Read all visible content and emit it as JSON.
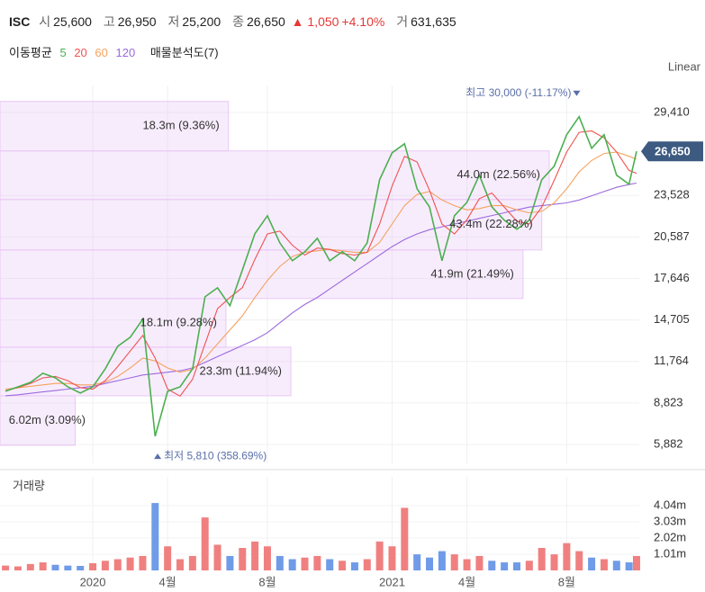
{
  "header": {
    "ticker": "ISC",
    "fields": [
      {
        "label": "시",
        "value": "25,600"
      },
      {
        "label": "고",
        "value": "26,950"
      },
      {
        "label": "저",
        "value": "25,200"
      },
      {
        "label": "종",
        "value": "26,650"
      }
    ],
    "change": "▲ 1,050",
    "change_pct": "+4.10%",
    "volume_label": "거",
    "volume_value": "631,635"
  },
  "legend_title": "이동평균",
  "chart_data": [
    {
      "type": "line",
      "scale_label": "Linear",
      "x": [
        -3.5,
        -3,
        -2.5,
        -2,
        -1.5,
        -1,
        -0.5,
        0,
        0.5,
        1,
        1.5,
        2,
        2.5,
        3,
        3.5,
        4,
        4.5,
        5,
        5.5,
        6,
        6.5,
        7,
        7.5,
        8,
        8.5,
        9,
        9.5,
        10,
        10.5,
        11,
        11.5,
        12,
        12.5,
        13,
        13.5,
        14,
        14.5,
        15,
        15.5,
        16,
        16.5,
        17,
        17.5,
        18,
        18.5,
        19,
        19.5,
        20,
        20.5,
        21,
        21.5,
        21.8
      ],
      "series": [
        {
          "name": "5",
          "color": "#4caf50",
          "values": [
            9650,
            9960,
            10280,
            10920,
            10600,
            9960,
            9520,
            9960,
            11240,
            12840,
            13470,
            14750,
            6460,
            9650,
            9960,
            11240,
            16340,
            16980,
            15710,
            18260,
            20810,
            22090,
            20170,
            18900,
            19530,
            20490,
            18900,
            19530,
            18900,
            20170,
            24640,
            26550,
            27190,
            24000,
            22720,
            18900,
            22090,
            23040,
            24960,
            22720,
            21770,
            21130,
            21770,
            24640,
            25600,
            27830,
            29110,
            26870,
            27830,
            24960,
            24320,
            26650
          ]
        },
        {
          "name": "20",
          "color": "#ef5350",
          "values": [
            9700,
            9900,
            10200,
            10600,
            10700,
            10400,
            9900,
            9800,
            10400,
            11400,
            12500,
            13600,
            12000,
            9800,
            9300,
            10500,
            13000,
            15500,
            16300,
            17000,
            19000,
            20800,
            21000,
            20000,
            19300,
            19800,
            19700,
            19400,
            19300,
            19500,
            21500,
            24200,
            26300,
            25900,
            23900,
            21500,
            20800,
            21800,
            23300,
            23700,
            22700,
            21700,
            21500,
            22700,
            24600,
            26600,
            28000,
            28100,
            27600,
            26600,
            25300,
            25100
          ]
        },
        {
          "name": "60",
          "color": "#f5a25d",
          "values": [
            9800,
            9900,
            10000,
            10100,
            10200,
            10200,
            10100,
            10100,
            10300,
            10700,
            11300,
            12000,
            11800,
            11300,
            11000,
            11200,
            12000,
            13000,
            14000,
            15000,
            16300,
            17500,
            18500,
            19200,
            19500,
            19600,
            19700,
            19600,
            19500,
            19500,
            20200,
            21500,
            22800,
            23600,
            23800,
            23200,
            22800,
            22500,
            22600,
            22800,
            22800,
            22500,
            22300,
            22400,
            23000,
            24000,
            25200,
            26000,
            26500,
            26600,
            26300,
            26100
          ]
        },
        {
          "name": "120",
          "color": "#9c6ade",
          "values": [
            9330,
            9400,
            9500,
            9600,
            9700,
            9800,
            9900,
            10000,
            10200,
            10400,
            10600,
            10800,
            10900,
            11000,
            11100,
            11300,
            11700,
            12100,
            12500,
            12900,
            13300,
            13800,
            14500,
            15200,
            15800,
            16300,
            16900,
            17500,
            18100,
            18700,
            19300,
            19900,
            20400,
            20800,
            21100,
            21300,
            21500,
            21700,
            21900,
            22100,
            22300,
            22500,
            22700,
            22800,
            22900,
            23000,
            23200,
            23500,
            23800,
            24100,
            24300,
            24400
          ]
        }
      ],
      "xlim": [
        -3.72,
        21.91
      ],
      "ylim": [
        4540,
        31320
      ],
      "yticks": [
        {
          "value": 5882,
          "label": "5,882"
        },
        {
          "value": 8823,
          "label": "8,823"
        },
        {
          "value": 11764,
          "label": "11,764"
        },
        {
          "value": 14705,
          "label": "14,705"
        },
        {
          "value": 17646,
          "label": "17,646"
        },
        {
          "value": 20587,
          "label": "20,587"
        },
        {
          "value": 23528,
          "label": "23,528"
        },
        {
          "value": 29410,
          "label": "29,410"
        }
      ],
      "grid": true,
      "volume_profile": {
        "title": "매물분석도(7)",
        "color": "#e9c8f5",
        "bins": [
          5818,
          9327,
          12772,
          16218,
          19663,
          23236,
          26681,
          30190
        ],
        "values": [
          6.02,
          23.3,
          18.1,
          41.9,
          43.4,
          44.0,
          18.3
        ],
        "value_labels": [
          "6.02m (3.09%)",
          "23.3m (11.94%)",
          "18.1m (9.28%)",
          "41.9m (21.49%)",
          "43.4m (22.28%)",
          "44.0m (22.56%)",
          "18.3m (9.36%)"
        ]
      },
      "annotations": [
        {
          "label": "최고 30,000 (-11.17%)",
          "value": 30000,
          "x": 19.4
        },
        {
          "label": "최저 5,810 (358.69%)",
          "value": 5810,
          "x": 2.6
        }
      ],
      "last": {
        "value": 26650,
        "label": "26,650",
        "color": "#3d5a80"
      }
    },
    {
      "type": "bar",
      "title": "거래량",
      "up_color": "#f08080",
      "down_color": "#6f9be8",
      "values": [
        300000,
        250000,
        400000,
        500000,
        350000,
        300000,
        280000,
        450000,
        600000,
        700000,
        800000,
        900000,
        4200000,
        1500000,
        700000,
        900000,
        3300000,
        1600000,
        900000,
        1400000,
        1800000,
        1500000,
        900000,
        700000,
        800000,
        900000,
        700000,
        600000,
        500000,
        700000,
        1800000,
        1500000,
        3900000,
        1000000,
        800000,
        1200000,
        1000000,
        700000,
        900000,
        600000,
        500000,
        500000,
        600000,
        1400000,
        1000000,
        1700000,
        1200000,
        800000,
        700000,
        600000,
        500000,
        900000
      ],
      "xlim": [
        -3.72,
        21.91
      ],
      "xticks": [
        {
          "value": 0,
          "label": "2020"
        },
        {
          "value": 3,
          "label": "4월"
        },
        {
          "value": 7,
          "label": "8월"
        },
        {
          "value": 12,
          "label": "2021"
        },
        {
          "value": 15,
          "label": "4월"
        },
        {
          "value": 19,
          "label": "8월"
        }
      ],
      "ylim": [
        0,
        5270000
      ],
      "yticks": [
        {
          "value": 1010000,
          "label": "1.01m"
        },
        {
          "value": 2020000,
          "label": "2.02m"
        },
        {
          "value": 3030000,
          "label": "3.03m"
        },
        {
          "value": 4040000,
          "label": "4.04m"
        }
      ],
      "grid": true
    }
  ]
}
